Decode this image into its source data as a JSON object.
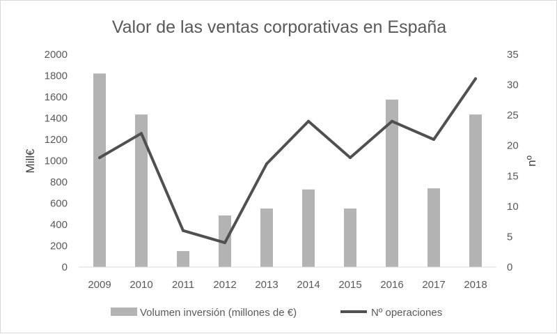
{
  "chart_data": {
    "type": "bar",
    "title": "Valor de las ventas corporativas en España",
    "categories": [
      "2009",
      "2010",
      "2011",
      "2012",
      "2013",
      "2014",
      "2015",
      "2016",
      "2017",
      "2018"
    ],
    "series": [
      {
        "name": "Volumen inversión (millones de €)",
        "type": "bar",
        "axis": "left",
        "color": "#b3b3b3",
        "values": [
          1820,
          1435,
          150,
          485,
          550,
          730,
          550,
          1575,
          740,
          1435
        ]
      },
      {
        "name": "Nº operaciones",
        "type": "line",
        "axis": "right",
        "color": "#505050",
        "values": [
          18,
          22,
          6,
          4,
          17,
          24,
          18,
          24,
          21,
          31
        ]
      }
    ],
    "ylabel": "Mill€",
    "y2label": "nº",
    "ylim": [
      0,
      2000
    ],
    "y2lim": [
      0,
      35
    ],
    "yticks": [
      "0",
      "200",
      "400",
      "600",
      "800",
      "1000",
      "1200",
      "1400",
      "1600",
      "1800",
      "2000"
    ],
    "y2ticks": [
      "0",
      "5",
      "10",
      "15",
      "20",
      "25",
      "30",
      "35"
    ],
    "grid": false,
    "legend_position": "bottom"
  }
}
